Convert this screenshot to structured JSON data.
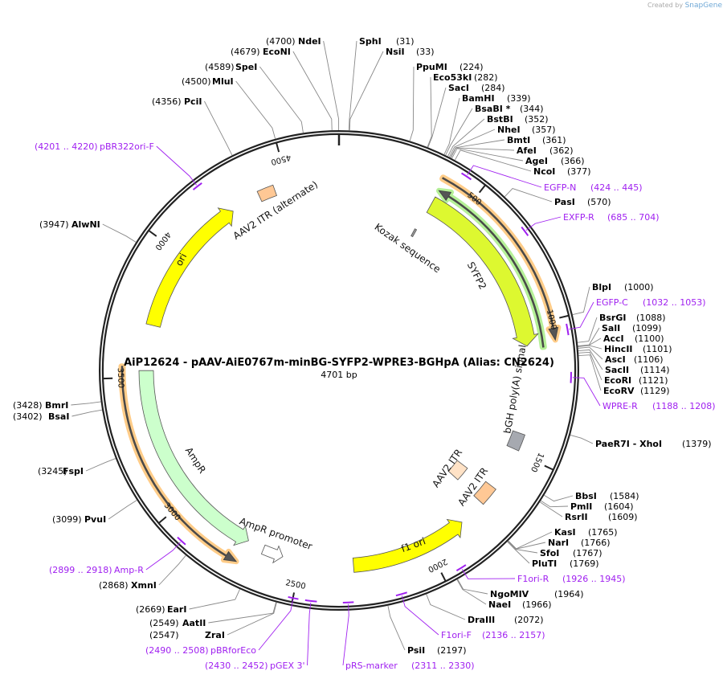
{
  "credit": {
    "prefix": "Created by",
    "brand": "SnapGene"
  },
  "plasmid": {
    "title": "AiP12624 - pAAV-AiE0767m-minBG-SYFP2-WPRE3-BGHpA (Alias: CN2624)",
    "length_label": "4701 bp",
    "length": 4701
  },
  "ticks": [
    "500",
    "1000",
    "1500",
    "2000",
    "2500",
    "3000",
    "3500",
    "4000",
    "4500"
  ],
  "enzymes": [
    {
      "name": "NdeI",
      "pos": "(4700)",
      "bp": 4700
    },
    {
      "name": "EcoNI",
      "pos": "(4679)",
      "bp": 4679
    },
    {
      "name": "SpeI",
      "pos": "(4589)",
      "bp": 4589
    },
    {
      "name": "MluI",
      "pos": "(4500)",
      "bp": 4500
    },
    {
      "name": "PciI",
      "pos": "(4356)",
      "bp": 4356
    },
    {
      "name": "AlwNI",
      "pos": "(3947)",
      "bp": 3947
    },
    {
      "name": "BmrI",
      "pos": "(3428)",
      "bp": 3428
    },
    {
      "name": "BsaI",
      "pos": "(3402)",
      "bp": 3402
    },
    {
      "name": "FspI",
      "pos": "(3245)",
      "bp": 3245
    },
    {
      "name": "PvuI",
      "pos": "(3099)",
      "bp": 3099
    },
    {
      "name": "XmnI",
      "pos": "(2868)",
      "bp": 2868
    },
    {
      "name": "EarI",
      "pos": "(2669)",
      "bp": 2669
    },
    {
      "name": "AatII",
      "pos": "(2549)",
      "bp": 2549
    },
    {
      "name": "ZraI",
      "pos": "(2547)",
      "bp": 2547
    },
    {
      "name": "SphI",
      "pos": "(31)",
      "bp": 31
    },
    {
      "name": "NsiI",
      "pos": "(33)",
      "bp": 33
    },
    {
      "name": "PpuMI",
      "pos": "(224)",
      "bp": 224
    },
    {
      "name": "Eco53kI",
      "pos": "(282)",
      "bp": 282
    },
    {
      "name": "SacI",
      "pos": "(284)",
      "bp": 284
    },
    {
      "name": "BamHI",
      "pos": "(339)",
      "bp": 339
    },
    {
      "name": "BsaBI *",
      "pos": "(344)",
      "bp": 344
    },
    {
      "name": "BstBI",
      "pos": "(352)",
      "bp": 352
    },
    {
      "name": "NheI",
      "pos": "(357)",
      "bp": 357
    },
    {
      "name": "BmtI",
      "pos": "(361)",
      "bp": 361
    },
    {
      "name": "AfeI",
      "pos": "(362)",
      "bp": 362
    },
    {
      "name": "AgeI",
      "pos": "(366)",
      "bp": 366
    },
    {
      "name": "NcoI",
      "pos": "(377)",
      "bp": 377
    },
    {
      "name": "PasI",
      "pos": "(570)",
      "bp": 570
    },
    {
      "name": "BlpI",
      "pos": "(1000)",
      "bp": 1000
    },
    {
      "name": "BsrGI",
      "pos": "(1088)",
      "bp": 1088
    },
    {
      "name": "SalI",
      "pos": "(1099)",
      "bp": 1099
    },
    {
      "name": "AccI",
      "pos": "(1100)",
      "bp": 1100
    },
    {
      "name": "HincII",
      "pos": "(1101)",
      "bp": 1101
    },
    {
      "name": "AscI",
      "pos": "(1106)",
      "bp": 1106
    },
    {
      "name": "SacII",
      "pos": "(1114)",
      "bp": 1114
    },
    {
      "name": "EcoRI",
      "pos": "(1121)",
      "bp": 1121
    },
    {
      "name": "EcoRV",
      "pos": "(1129)",
      "bp": 1129
    },
    {
      "name": "PaeR7I - XhoI",
      "pos": "(1379)",
      "bp": 1379
    },
    {
      "name": "BbsI",
      "pos": "(1584)",
      "bp": 1584
    },
    {
      "name": "PmlI",
      "pos": "(1604)",
      "bp": 1604
    },
    {
      "name": "RsrII",
      "pos": "(1609)",
      "bp": 1609
    },
    {
      "name": "KasI",
      "pos": "(1765)",
      "bp": 1765
    },
    {
      "name": "NarI",
      "pos": "(1766)",
      "bp": 1766
    },
    {
      "name": "SfoI",
      "pos": "(1767)",
      "bp": 1767
    },
    {
      "name": "PluTI",
      "pos": "(1769)",
      "bp": 1769
    },
    {
      "name": "NgoMIV",
      "pos": "(1964)",
      "bp": 1964
    },
    {
      "name": "NaeI",
      "pos": "(1966)",
      "bp": 1966
    },
    {
      "name": "DraIII",
      "pos": "(2072)",
      "bp": 2072
    },
    {
      "name": "PsiI",
      "pos": "(2197)",
      "bp": 2197
    }
  ],
  "primers": [
    {
      "name": "EGFP-N",
      "pos": "(424 .. 445)",
      "start": 424,
      "end": 445
    },
    {
      "name": "EXFP-R",
      "pos": "(685 .. 704)",
      "start": 685,
      "end": 704
    },
    {
      "name": "EGFP-C",
      "pos": "(1032 .. 1053)",
      "start": 1032,
      "end": 1053
    },
    {
      "name": "WPRE-R",
      "pos": "(1188 .. 1208)",
      "start": 1188,
      "end": 1208
    },
    {
      "name": "F1ori-R",
      "pos": "(1926 .. 1945)",
      "start": 1926,
      "end": 1945
    },
    {
      "name": "F1ori-F",
      "pos": "(2136 .. 2157)",
      "start": 2136,
      "end": 2157
    },
    {
      "name": "pRS-marker",
      "pos": "(2311 .. 2330)",
      "start": 2311,
      "end": 2330
    },
    {
      "name": "pGEX 3'",
      "pos": "(2430 .. 2452)",
      "start": 2430,
      "end": 2452
    },
    {
      "name": "pBRforEco",
      "pos": "(2490 .. 2508)",
      "start": 2490,
      "end": 2508
    },
    {
      "name": "Amp-R",
      "pos": "(2899 .. 2918)",
      "start": 2899,
      "end": 2918
    },
    {
      "name": "pBR322ori-F",
      "pos": "(4201 .. 4220)",
      "start": 4201,
      "end": 4220
    }
  ],
  "features": [
    {
      "name": "SYFP2",
      "start": 379,
      "end": 1079,
      "direction": "forward",
      "color": "#ddf830"
    },
    {
      "name": "Kozak sequence",
      "start": 368,
      "end": 377,
      "direction": "none",
      "color": "#9a9a9a"
    },
    {
      "name": "bGH poly(A) signal",
      "start": 1425,
      "end": 1490,
      "direction": "none",
      "color": "#a6a9b0"
    },
    {
      "name": "AAV2 ITR",
      "start": 1662,
      "end": 1732,
      "direction": "none",
      "color": "#ffe2c6"
    },
    {
      "name": "AAV2 ITR",
      "start": 1660,
      "end": 1735,
      "direction": "none",
      "color": "#ffc895"
    },
    {
      "name": "f1 ori",
      "start": 1841,
      "end": 2295,
      "direction": "reverse",
      "color": "#ffff00"
    },
    {
      "name": "AmpR promoter",
      "start": 2570,
      "end": 2650,
      "direction": "reverse",
      "color": "#ffffff"
    },
    {
      "name": "AmpR",
      "start": 2716,
      "end": 3525,
      "direction": "reverse",
      "color": "#ccffcc"
    },
    {
      "name": "ori",
      "start": 3703,
      "end": 4262,
      "direction": "forward",
      "color": "#ffff00"
    },
    {
      "name": "AAV2 ITR (alternate)",
      "start": 4380,
      "end": 4445,
      "direction": "none",
      "color": "#ffc895"
    }
  ],
  "orfs": [
    {
      "start": 380,
      "end": 1090,
      "direction": "reverse",
      "color": "#b5f098"
    },
    {
      "start": 370,
      "end": 1070,
      "direction": "forward",
      "color": "#ffcc88"
    },
    {
      "start": 2720,
      "end": 3540,
      "direction": "reverse",
      "color": "#ffcc88"
    }
  ]
}
